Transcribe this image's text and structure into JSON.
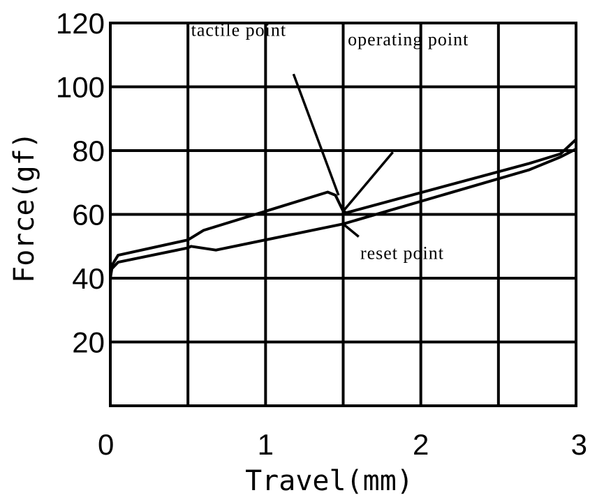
{
  "chart_data": {
    "type": "line",
    "title": "",
    "xlabel": "Travel(mm)",
    "ylabel": "Force(gf)",
    "xlim": [
      0,
      3
    ],
    "ylim": [
      0,
      120
    ],
    "x_ticks": [
      0,
      1,
      2,
      3
    ],
    "x_tick_labels": [
      "0",
      "1",
      "2",
      "3"
    ],
    "y_ticks": [
      20,
      40,
      60,
      80,
      100,
      120
    ],
    "y_tick_labels": [
      "20",
      "40",
      "60",
      "80",
      "100",
      "120"
    ],
    "x_grid": [
      0.5,
      1,
      1.5,
      2,
      2.5
    ],
    "y_grid": [
      20,
      40,
      60,
      80,
      100
    ],
    "grid": true,
    "series": [
      {
        "values": [
          [
            0,
            40
          ],
          [
            0.01,
            44
          ],
          [
            0.05,
            47.2
          ],
          [
            0.5,
            52
          ],
          [
            0.6,
            55
          ],
          [
            1.4,
            67
          ],
          [
            1.45,
            66
          ],
          [
            1.5,
            61
          ],
          [
            1.52,
            60.5
          ],
          [
            2.7,
            76
          ],
          [
            2.9,
            79
          ],
          [
            3,
            83.5
          ]
        ]
      },
      {
        "values": [
          [
            0,
            40
          ],
          [
            0.01,
            43
          ],
          [
            0.05,
            45
          ],
          [
            0.5,
            49.5
          ],
          [
            0.52,
            50
          ],
          [
            0.68,
            48.8
          ],
          [
            1.5,
            57
          ],
          [
            2.7,
            74
          ],
          [
            2.9,
            78
          ],
          [
            3,
            80.5
          ]
        ]
      }
    ],
    "annotations": [
      {
        "text": "tactile point",
        "point": [
          1.47,
          66
        ],
        "label_at": [
          0.52,
          116
        ],
        "anchor": [
          1.18,
          104
        ]
      },
      {
        "text": "operating point",
        "point": [
          1.5,
          61
        ],
        "label_at": [
          1.53,
          113
        ],
        "anchor": [
          1.82,
          79.5
        ]
      },
      {
        "text": "reset point",
        "point": [
          1.5,
          57
        ],
        "label_at": [
          1.61,
          46
        ],
        "anchor": [
          1.6,
          53
        ]
      }
    ]
  }
}
